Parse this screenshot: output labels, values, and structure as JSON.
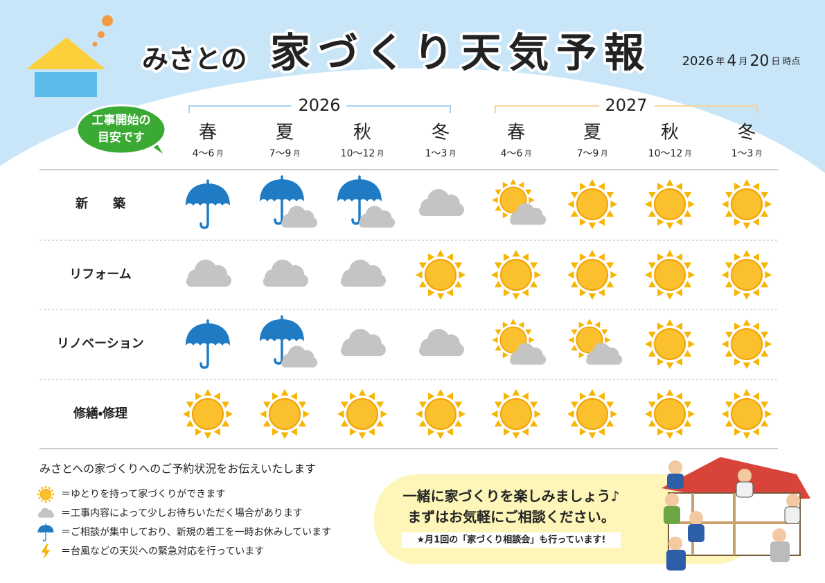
{
  "header": {
    "title_small": "みさとの",
    "title_main": "家づくり天気予報",
    "date": {
      "year": "2026",
      "year_unit": "年",
      "month": "4",
      "month_unit": "月",
      "day": "20",
      "day_unit": "日",
      "suffix": "時点"
    }
  },
  "badge": {
    "lines": [
      "工事開始の",
      "目安です"
    ]
  },
  "years": [
    "2026",
    "2027"
  ],
  "columns": [
    {
      "season": "春",
      "range": "4～6",
      "unit": "月"
    },
    {
      "season": "夏",
      "range": "7～9",
      "unit": "月"
    },
    {
      "season": "秋",
      "range": "10～12",
      "unit": "月"
    },
    {
      "season": "冬",
      "range": "1～3",
      "unit": "月"
    },
    {
      "season": "春",
      "range": "4～6",
      "unit": "月"
    },
    {
      "season": "夏",
      "range": "7～9",
      "unit": "月"
    },
    {
      "season": "秋",
      "range": "10～12",
      "unit": "月"
    },
    {
      "season": "冬",
      "range": "1～3",
      "unit": "月"
    }
  ],
  "rows": [
    {
      "label": "新　　築",
      "cells": [
        "umbrella",
        "umbrella-cloud",
        "umbrella-cloud",
        "cloud",
        "sun-cloud",
        "sun",
        "sun",
        "sun"
      ]
    },
    {
      "label": "リフォーム",
      "cells": [
        "cloud",
        "cloud",
        "cloud",
        "sun",
        "sun",
        "sun",
        "sun",
        "sun"
      ]
    },
    {
      "label": "リノベーション",
      "cells": [
        "umbrella",
        "umbrella-cloud",
        "cloud",
        "cloud",
        "sun-cloud",
        "sun-cloud",
        "sun",
        "sun"
      ]
    },
    {
      "label": "修繕・修理",
      "cells": [
        "sun",
        "sun",
        "sun",
        "sun",
        "sun",
        "sun",
        "sun",
        "sun"
      ]
    }
  ],
  "legend": {
    "heading": "みさとへの家づくりへのご予約状況をお伝えいたします",
    "items": [
      {
        "icon": "sun",
        "text": "＝ゆとりを持って家づくりができます"
      },
      {
        "icon": "cloud",
        "text": "＝工事内容によって少しお待ちいただく場合があります"
      },
      {
        "icon": "umbrella",
        "text": "＝ご相談が集中しており、新規の着工を一時お休みしています"
      },
      {
        "icon": "bolt",
        "text": "＝台風などの天災への緊急対応を行っています"
      }
    ]
  },
  "callout": {
    "lines": [
      "一緒に家づくりを楽しみましょう♪",
      "まずはお気軽にご相談ください。"
    ],
    "note": "★月1回の「家づくり相談会」も行っています!"
  }
}
